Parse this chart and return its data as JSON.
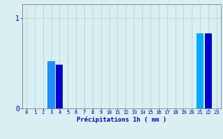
{
  "categories": [
    0,
    1,
    2,
    3,
    4,
    5,
    6,
    7,
    8,
    9,
    10,
    11,
    12,
    13,
    14,
    15,
    16,
    17,
    18,
    19,
    20,
    21,
    22,
    23
  ],
  "values": [
    0,
    0,
    0,
    0.52,
    0.48,
    0,
    0,
    0,
    0,
    0,
    0,
    0,
    0,
    0,
    0,
    0,
    0,
    0,
    0,
    0,
    0,
    0.83,
    0.83,
    0
  ],
  "bar_colors": [
    "#0000ff",
    "#0000ff",
    "#0000ff",
    "#1e90ff",
    "#0000cd",
    "#0000ff",
    "#0000ff",
    "#0000ff",
    "#0000ff",
    "#0000ff",
    "#0000ff",
    "#0000ff",
    "#0000ff",
    "#0000ff",
    "#0000ff",
    "#0000ff",
    "#0000ff",
    "#0000ff",
    "#0000ff",
    "#0000ff",
    "#0000ff",
    "#00aaff",
    "#0000cd",
    "#0000ff"
  ],
  "bg_color": "#daf0f0",
  "grid_color": "#b0d8d8",
  "axis_color": "#888899",
  "xlabel": "Précipitations 1h ( mm )",
  "xlabel_color": "#0000bb",
  "tick_color": "#0000bb",
  "ylim": [
    0,
    1.15
  ],
  "yticks": [
    0,
    1
  ],
  "xlim": [
    -0.5,
    23.5
  ],
  "tick_fontsize": 5.2,
  "xlabel_fontsize": 6.5
}
